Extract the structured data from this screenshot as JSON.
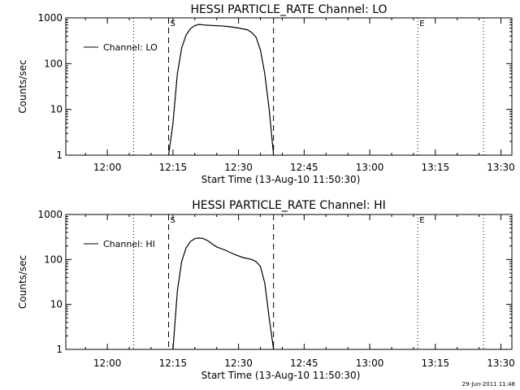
{
  "footer_timestamp": "29-Jun-2011 11:48",
  "chart_data": [
    {
      "type": "line",
      "title": "HESSI PARTICLE_RATE Channel: LO",
      "xlabel": "Start Time (13-Aug-10 11:50:30)",
      "ylabel": "Counts/sec",
      "yscale": "log",
      "ylim": [
        1,
        1000
      ],
      "xlim_minutes_after_1150_30": [
        0,
        102
      ],
      "x_ticks": [
        "12:00",
        "12:15",
        "12:30",
        "12:45",
        "13:00",
        "13:15",
        "13:30"
      ],
      "y_ticks": [
        "1",
        "10",
        "100",
        "1000"
      ],
      "legend": {
        "label": "Channel: LO",
        "placement": "top-left"
      },
      "markers": [
        {
          "label": "",
          "time": "12:06",
          "style": "dotted"
        },
        {
          "label": "S",
          "time": "12:14",
          "style": "dashed"
        },
        {
          "label": "",
          "time": "12:38",
          "style": "dashed"
        },
        {
          "label": "E",
          "time": "13:11",
          "style": "dotted"
        },
        {
          "label": "",
          "time": "13:26",
          "style": "dotted"
        }
      ],
      "series": [
        {
          "name": "Channel: LO",
          "points": [
            [
              "12:14",
              1
            ],
            [
              "12:15",
              5
            ],
            [
              "12:16",
              60
            ],
            [
              "12:17",
              220
            ],
            [
              "12:18",
              420
            ],
            [
              "12:19",
              580
            ],
            [
              "12:20",
              680
            ],
            [
              "12:21",
              720
            ],
            [
              "12:22",
              700
            ],
            [
              "12:24",
              680
            ],
            [
              "12:26",
              670
            ],
            [
              "12:28",
              640
            ],
            [
              "12:30",
              600
            ],
            [
              "12:32",
              550
            ],
            [
              "12:33",
              480
            ],
            [
              "12:34",
              380
            ],
            [
              "12:35",
              200
            ],
            [
              "12:36",
              60
            ],
            [
              "12:37",
              10
            ],
            [
              "12:38",
              1
            ]
          ]
        }
      ]
    },
    {
      "type": "line",
      "title": "HESSI PARTICLE_RATE Channel: HI",
      "xlabel": "Start Time (13-Aug-10 11:50:30)",
      "ylabel": "Counts/sec",
      "yscale": "log",
      "ylim": [
        1,
        1000
      ],
      "xlim_minutes_after_1150_30": [
        0,
        102
      ],
      "x_ticks": [
        "12:00",
        "12:15",
        "12:30",
        "12:45",
        "13:00",
        "13:15",
        "13:30"
      ],
      "y_ticks": [
        "1",
        "10",
        "100",
        "1000"
      ],
      "legend": {
        "label": "Channel: HI",
        "placement": "top-left"
      },
      "markers": [
        {
          "label": "",
          "time": "12:06",
          "style": "dotted"
        },
        {
          "label": "S",
          "time": "12:14",
          "style": "dashed"
        },
        {
          "label": "",
          "time": "12:38",
          "style": "dashed"
        },
        {
          "label": "E",
          "time": "13:11",
          "style": "dotted"
        },
        {
          "label": "",
          "time": "13:26",
          "style": "dotted"
        }
      ],
      "series": [
        {
          "name": "Channel: HI",
          "points": [
            [
              "12:15",
              1
            ],
            [
              "12:16",
              20
            ],
            [
              "12:17",
              90
            ],
            [
              "12:18",
              180
            ],
            [
              "12:19",
              250
            ],
            [
              "12:20",
              290
            ],
            [
              "12:21",
              300
            ],
            [
              "12:22",
              290
            ],
            [
              "12:23",
              260
            ],
            [
              "12:24",
              220
            ],
            [
              "12:25",
              190
            ],
            [
              "12:27",
              160
            ],
            [
              "12:29",
              130
            ],
            [
              "12:31",
              110
            ],
            [
              "12:33",
              100
            ],
            [
              "12:34",
              90
            ],
            [
              "12:35",
              70
            ],
            [
              "12:36",
              30
            ],
            [
              "12:37",
              5
            ],
            [
              "12:38",
              1
            ]
          ]
        }
      ]
    }
  ]
}
